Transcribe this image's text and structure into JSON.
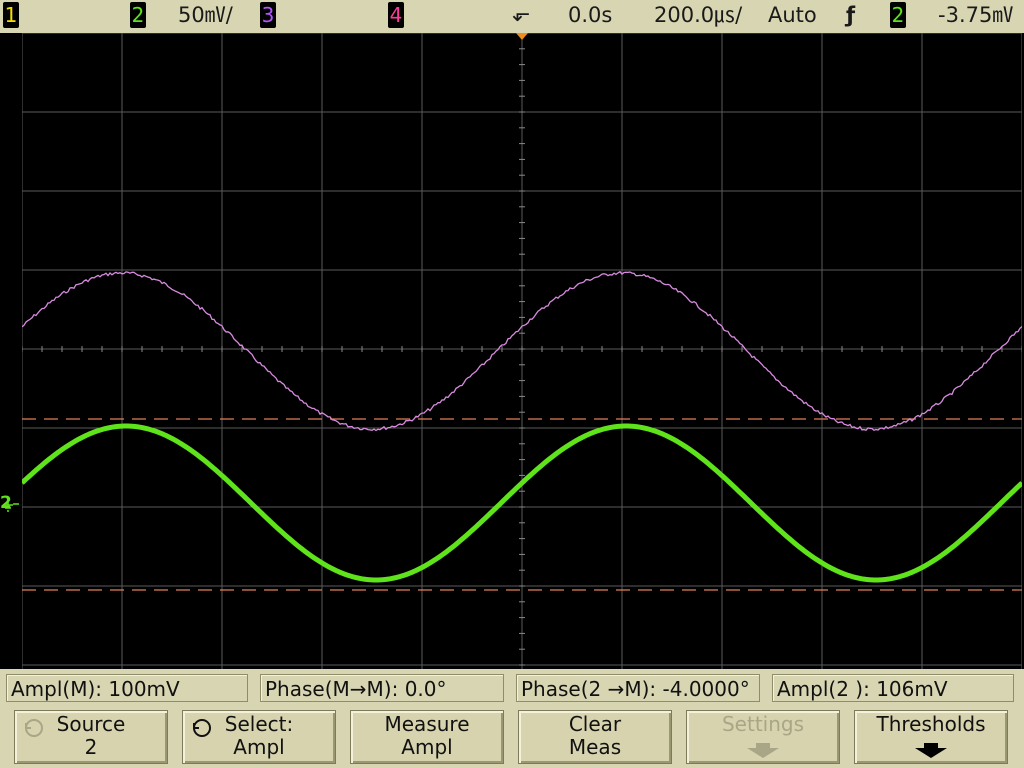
{
  "topbar": {
    "ch1_label": "1",
    "ch2_label": "2",
    "ch2_scale": "50㎷/",
    "ch3_label": "3",
    "ch4_label": "4",
    "trigger_marker": "⬐",
    "time_delay": "0.0s",
    "time_scale": "200.0㎲/",
    "trigger_mode": "Auto",
    "trigger_slope": "ƒ",
    "trigger_source": "2",
    "trigger_level": "-3.75㎷"
  },
  "screen": {
    "ch2_ground_marker": "2",
    "waveform_math_color": "#d98ae0",
    "waveform_ch2_color": "#5fe31a",
    "grid_color": "#5a5a5a",
    "cursor_color": "#e0805a"
  },
  "measurements": [
    {
      "label": "Ampl(M): 100mV"
    },
    {
      "label": "Phase(M→M): 0.0°"
    },
    {
      "label": "Phase(2 →M): -4.0000°"
    },
    {
      "label": "Ampl(2 ): 106mV"
    }
  ],
  "softkeys": [
    {
      "line1": "Source",
      "line2": "2"
    },
    {
      "line1": "Select:",
      "line2": "Ampl"
    },
    {
      "line1": "Measure",
      "line2": "Ampl"
    },
    {
      "line1": "Clear",
      "line2": "Meas"
    },
    {
      "line1": "Settings"
    },
    {
      "line1": "Thresholds"
    }
  ]
}
